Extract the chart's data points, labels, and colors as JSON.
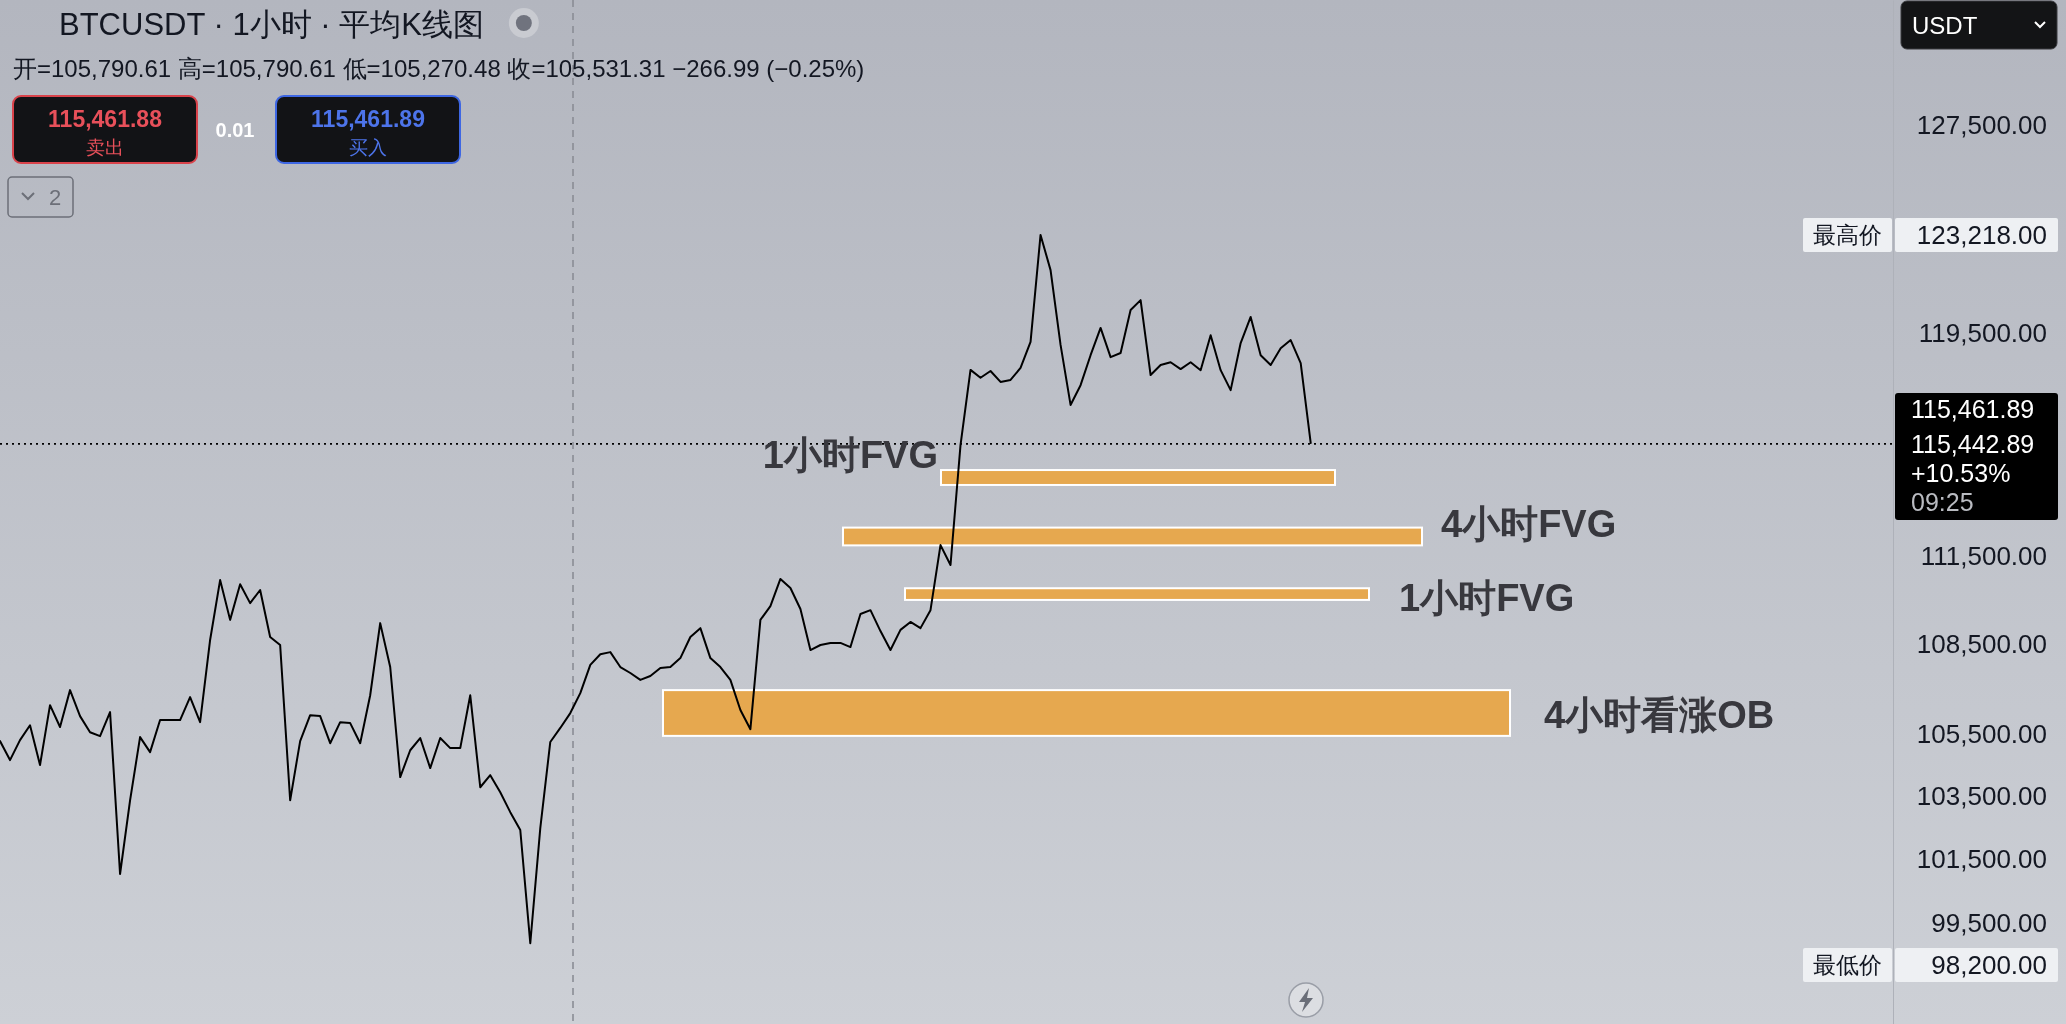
{
  "chart_data": {
    "type": "line",
    "title": "BTCUSDT · 1小时 · 平均K线图",
    "subtitle": "开=105,790.61 高=105,790.61 低=105,270.48 收=105,531.31 −266.99 (−0.25%)",
    "categories": [
      null,
      null,
      null,
      null,
      null,
      null,
      null,
      null,
      null,
      null,
      null,
      null,
      null,
      null,
      null,
      null,
      null,
      null,
      null,
      null,
      null,
      null,
      null,
      null,
      null,
      null,
      null,
      null,
      null,
      null,
      null,
      null,
      null,
      null,
      null,
      null,
      null,
      null,
      null,
      null,
      null,
      null,
      null,
      null,
      null,
      null,
      null,
      null,
      null,
      null,
      null,
      null,
      null,
      null,
      null,
      null,
      null,
      null,
      null,
      null,
      null,
      null,
      null,
      null,
      null,
      null,
      null,
      null,
      null,
      null,
      null,
      null,
      null,
      null,
      null,
      null,
      null,
      null,
      null,
      null,
      null,
      null,
      null,
      null,
      null,
      null,
      null,
      null,
      null,
      null,
      null,
      null,
      null,
      null,
      null,
      null,
      null,
      null,
      null,
      null,
      null,
      null,
      null,
      null,
      null,
      null,
      null,
      null,
      null,
      null,
      null,
      null,
      null,
      null,
      null,
      null,
      null,
      null,
      null,
      null,
      null,
      null,
      null,
      null,
      null,
      null,
      null,
      null,
      null,
      null,
      null,
      null,
      null,
      null,
      null,
      null,
      null,
      null,
      null,
      null,
      null,
      null,
      null,
      null,
      null,
      null,
      null,
      null,
      null,
      null,
      null,
      null,
      null,
      null,
      null,
      null,
      null,
      null,
      null,
      null,
      null,
      null,
      null,
      null,
      null,
      null,
      null,
      null,
      null,
      null,
      null,
      null,
      null,
      null,
      null,
      null,
      null,
      null,
      null,
      null,
      null,
      null,
      null,
      null,
      null,
      null,
      null,
      null,
      null,
      null
    ],
    "series": [
      {
        "color": "#000000",
        "values": [
          105280,
          104660,
          105310,
          105800,
          104500,
          106460,
          105740,
          106960,
          106100,
          105570,
          105440,
          106230,
          101020,
          103360,
          105410,
          104920,
          105970,
          105970,
          105970,
          106730,
          105900,
          108640,
          110680,
          109320,
          110540,
          109890,
          110340,
          108740,
          108470,
          103360,
          105280,
          106130,
          106100,
          105210,
          105900,
          105870,
          105210,
          106790,
          109210,
          107730,
          104110,
          104980,
          105380,
          104400,
          105380,
          105050,
          105050,
          106790,
          103780,
          104170,
          103620,
          102980,
          102410,
          98870,
          102470,
          105250,
          105710,
          106200,
          106860,
          107800,
          108160,
          108230,
          107730,
          107530,
          107300,
          107430,
          107700,
          107730,
          108030,
          108740,
          109040,
          108030,
          107730,
          107300,
          106300,
          105670,
          109320,
          109790,
          110720,
          110410,
          109690,
          108300,
          108470,
          108540,
          108540,
          108400,
          109520,
          109650,
          108940,
          108300,
          108980,
          109250,
          109040,
          109650,
          111890,
          111200,
          115420,
          118150,
          117860,
          118110,
          117710,
          117780,
          118220,
          119180,
          123210,
          121870,
          119070,
          116870,
          117590,
          118690,
          119700,
          118620,
          118770,
          120370,
          120740,
          117960,
          118330,
          118430,
          118180,
          118430,
          118140,
          119430,
          118140,
          117410,
          119140,
          120110,
          118690,
          118330,
          118950,
          119250,
          118400,
          115500,
          null,
          null,
          null,
          null,
          null,
          null,
          null,
          null,
          null,
          null,
          null,
          null,
          null,
          null,
          null,
          null,
          null,
          null,
          null,
          null,
          null,
          null,
          null,
          null,
          null,
          null,
          null,
          null,
          null,
          null,
          null,
          null,
          null,
          null,
          null,
          null,
          null,
          null,
          null,
          null,
          null,
          null,
          null,
          null,
          null,
          null,
          null,
          null,
          null,
          null,
          null,
          null,
          null,
          null,
          null,
          null,
          null,
          null
        ]
      }
    ],
    "ylim": [
      96420,
      132540
    ],
    "yticks": [
      {
        "value": 99500,
        "label": "99,500.00"
      },
      {
        "value": 101500,
        "label": "101,500.00"
      },
      {
        "value": 103500,
        "label": "103,500.00"
      },
      {
        "value": 105500,
        "label": "105,500.00"
      },
      {
        "value": 108500,
        "label": "108,500.00"
      },
      {
        "value": 111500,
        "label": "111,500.00"
      },
      {
        "value": 119500,
        "label": "119,500.00"
      },
      {
        "value": 127500,
        "label": "127,500.00"
      }
    ],
    "log": true,
    "tick_labels": "y",
    "ref_lines": [
      {
        "axis": "y",
        "value": 115461.89,
        "label": "115,461.89",
        "line_style": "dotted",
        "color": "#000000"
      }
    ],
    "bands": [
      {
        "axis": "y",
        "from": 114000,
        "to": 114530,
        "label": "1小时FVG",
        "color": "#e6a84f"
      },
      {
        "axis": "y",
        "from": 111880,
        "to": 112500,
        "label": "4小时FVG",
        "color": "#e6a84f"
      },
      {
        "axis": "y",
        "from": 110000,
        "to": 110400,
        "label": "1小时FVG",
        "color": "#e6a84f"
      },
      {
        "axis": "y",
        "from": 105450,
        "to": 106960,
        "label": "4小时看涨OB",
        "color": "#e6a84f"
      }
    ],
    "annotations": [
      "最高价",
      "123,218.00",
      "最低价",
      "98,200.00",
      "115,442.89",
      "+10.53%",
      "09:25",
      "115,461.88",
      "卖出",
      "0.01",
      "115,461.89",
      "买入",
      "2",
      "USDT"
    ]
  }
}
